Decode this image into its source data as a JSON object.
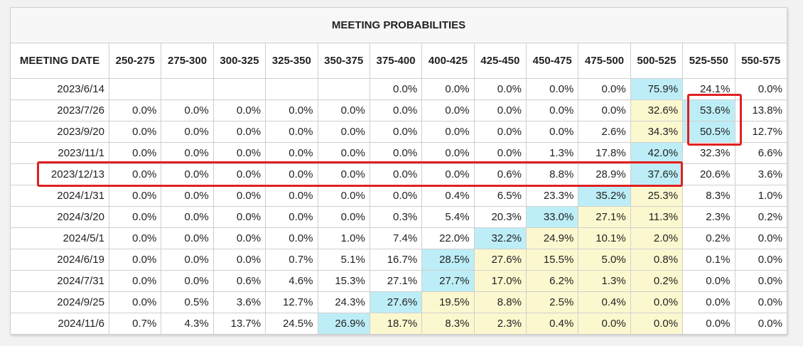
{
  "title": "MEETING PROBABILITIES",
  "date_header": "MEETING DATE",
  "columns": [
    "250-275",
    "275-300",
    "300-325",
    "325-350",
    "350-375",
    "375-400",
    "400-425",
    "425-450",
    "450-475",
    "475-500",
    "500-525",
    "525-550",
    "550-575"
  ],
  "colors": {
    "max": "#bdeef7",
    "range": "#fbf8cf",
    "annotation": "#e02020"
  },
  "rows": [
    {
      "date": "2023/6/14",
      "values": [
        "",
        "",
        "",
        "",
        "",
        "0.0%",
        "0.0%",
        "0.0%",
        "0.0%",
        "0.0%",
        "75.9%",
        "24.1%",
        "0.0%"
      ],
      "blue": 10,
      "yellow": []
    },
    {
      "date": "2023/7/26",
      "values": [
        "0.0%",
        "0.0%",
        "0.0%",
        "0.0%",
        "0.0%",
        "0.0%",
        "0.0%",
        "0.0%",
        "0.0%",
        "0.0%",
        "32.6%",
        "53.6%",
        "13.8%"
      ],
      "blue": 11,
      "yellow": [
        10
      ]
    },
    {
      "date": "2023/9/20",
      "values": [
        "0.0%",
        "0.0%",
        "0.0%",
        "0.0%",
        "0.0%",
        "0.0%",
        "0.0%",
        "0.0%",
        "0.0%",
        "2.6%",
        "34.3%",
        "50.5%",
        "12.7%"
      ],
      "blue": 11,
      "yellow": [
        10
      ]
    },
    {
      "date": "2023/11/1",
      "values": [
        "0.0%",
        "0.0%",
        "0.0%",
        "0.0%",
        "0.0%",
        "0.0%",
        "0.0%",
        "0.0%",
        "1.3%",
        "17.8%",
        "42.0%",
        "32.3%",
        "6.6%"
      ],
      "blue": 10,
      "yellow": []
    },
    {
      "date": "2023/12/13",
      "values": [
        "0.0%",
        "0.0%",
        "0.0%",
        "0.0%",
        "0.0%",
        "0.0%",
        "0.0%",
        "0.6%",
        "8.8%",
        "28.9%",
        "37.6%",
        "20.6%",
        "3.6%"
      ],
      "blue": 10,
      "yellow": []
    },
    {
      "date": "2024/1/31",
      "values": [
        "0.0%",
        "0.0%",
        "0.0%",
        "0.0%",
        "0.0%",
        "0.0%",
        "0.4%",
        "6.5%",
        "23.3%",
        "35.2%",
        "25.3%",
        "8.3%",
        "1.0%"
      ],
      "blue": 9,
      "yellow": [
        10
      ]
    },
    {
      "date": "2024/3/20",
      "values": [
        "0.0%",
        "0.0%",
        "0.0%",
        "0.0%",
        "0.0%",
        "0.3%",
        "5.4%",
        "20.3%",
        "33.0%",
        "27.1%",
        "11.3%",
        "2.3%",
        "0.2%"
      ],
      "blue": 8,
      "yellow": [
        9,
        10
      ]
    },
    {
      "date": "2024/5/1",
      "values": [
        "0.0%",
        "0.0%",
        "0.0%",
        "0.0%",
        "1.0%",
        "7.4%",
        "22.0%",
        "32.2%",
        "24.9%",
        "10.1%",
        "2.0%",
        "0.2%",
        "0.0%"
      ],
      "blue": 7,
      "yellow": [
        8,
        9,
        10
      ]
    },
    {
      "date": "2024/6/19",
      "values": [
        "0.0%",
        "0.0%",
        "0.0%",
        "0.7%",
        "5.1%",
        "16.7%",
        "28.5%",
        "27.6%",
        "15.5%",
        "5.0%",
        "0.8%",
        "0.1%",
        "0.0%"
      ],
      "blue": 6,
      "yellow": [
        7,
        8,
        9,
        10
      ]
    },
    {
      "date": "2024/7/31",
      "values": [
        "0.0%",
        "0.0%",
        "0.6%",
        "4.6%",
        "15.3%",
        "27.1%",
        "27.7%",
        "17.0%",
        "6.2%",
        "1.3%",
        "0.2%",
        "0.0%",
        "0.0%"
      ],
      "blue": 6,
      "yellow": [
        7,
        8,
        9,
        10
      ]
    },
    {
      "date": "2024/9/25",
      "values": [
        "0.0%",
        "0.5%",
        "3.6%",
        "12.7%",
        "24.3%",
        "27.6%",
        "19.5%",
        "8.8%",
        "2.5%",
        "0.4%",
        "0.0%",
        "0.0%",
        "0.0%"
      ],
      "blue": 5,
      "yellow": [
        6,
        7,
        8,
        9,
        10
      ]
    },
    {
      "date": "2024/11/6",
      "values": [
        "0.7%",
        "4.3%",
        "13.7%",
        "24.5%",
        "26.9%",
        "18.7%",
        "8.3%",
        "2.3%",
        "0.4%",
        "0.0%",
        "0.0%",
        "0.0%",
        "0.0%"
      ],
      "blue": 4,
      "yellow": [
        5,
        6,
        7,
        8,
        9,
        10
      ]
    }
  ]
}
